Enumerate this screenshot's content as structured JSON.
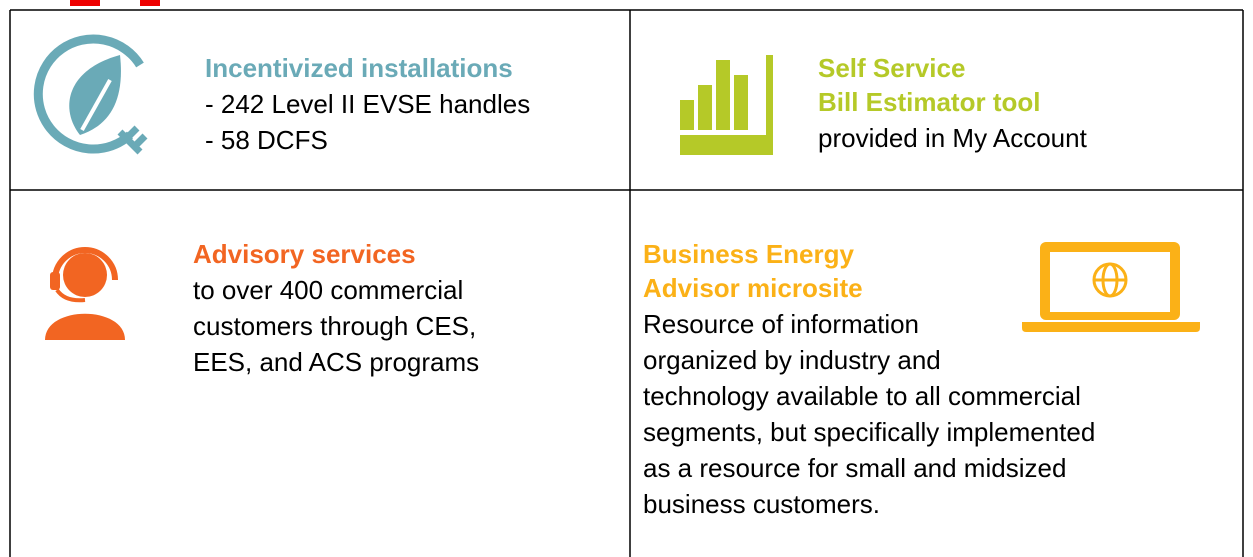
{
  "cells": [
    {
      "title": [
        "Incentivized installations"
      ],
      "body": [
        "- 242 Level II EVSE handles",
        "- 58 DCFS"
      ]
    },
    {
      "title": [
        "Self Service",
        "Bill Estimator tool"
      ],
      "body": [
        "provided in My Account"
      ]
    },
    {
      "title": [
        "Advisory services"
      ],
      "body": [
        "to over 400 commercial",
        "customers through CES,",
        "EES, and ACS programs"
      ]
    },
    {
      "title": [
        "Business Energy",
        "Advisor microsite"
      ],
      "body": [
        "Resource of information",
        "organized by industry and",
        "technology available to all commercial",
        "segments, but specifically implemented",
        "as a resource for small and midsized",
        "business customers."
      ]
    }
  ]
}
